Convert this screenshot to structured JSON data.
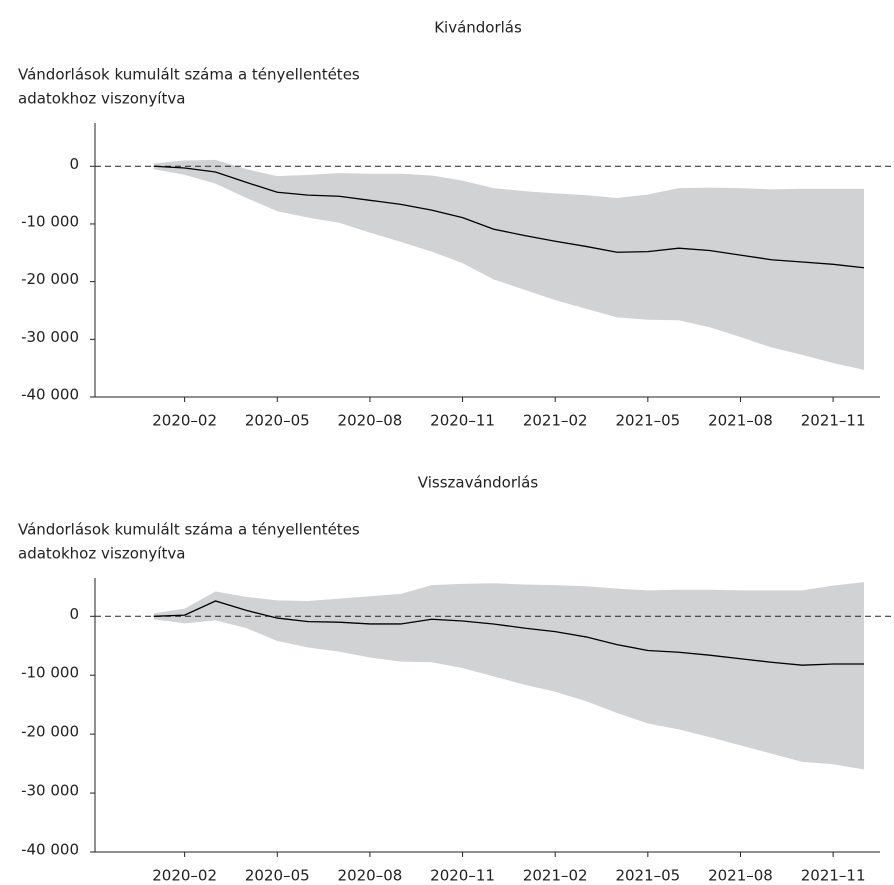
{
  "chart_data": [
    {
      "type": "line",
      "title": "Kivándorlás",
      "y_label": [
        "Vándorlások kumulált száma a tényellentétes",
        "adatokhoz viszonyítva"
      ],
      "x": [
        "2020-01",
        "2020-02",
        "2020-03",
        "2020-04",
        "2020-05",
        "2020-06",
        "2020-07",
        "2020-08",
        "2020-09",
        "2020-10",
        "2020-11",
        "2020-12",
        "2021-01",
        "2021-02",
        "2021-03",
        "2021-04",
        "2021-05",
        "2021-06",
        "2021-07",
        "2021-08",
        "2021-09",
        "2021-10",
        "2021-11",
        "2021-12"
      ],
      "series": [
        {
          "color": "#000000",
          "values": [
            0,
            -300,
            -1000,
            -2800,
            -4500,
            -5000,
            -5200,
            -5900,
            -6600,
            -7600,
            -8900,
            -10900,
            -12000,
            -13000,
            -13900,
            -14900,
            -14800,
            -14200,
            -14600,
            -15400,
            -16200,
            -16600,
            -17000,
            -17600
          ]
        }
      ],
      "band": {
        "color": "#d1d2d4",
        "upper": [
          500,
          1000,
          1100,
          -500,
          -1700,
          -1500,
          -1200,
          -1300,
          -1300,
          -1600,
          -2500,
          -3800,
          -4300,
          -4700,
          -5000,
          -5500,
          -4900,
          -3800,
          -3700,
          -3800,
          -4000,
          -3900,
          -3900,
          -3900
        ],
        "lower": [
          -500,
          -1500,
          -3000,
          -5500,
          -7800,
          -8900,
          -9800,
          -11500,
          -13100,
          -14800,
          -16800,
          -19600,
          -21400,
          -23200,
          -24700,
          -26200,
          -26600,
          -26700,
          -27900,
          -29600,
          -31400,
          -32700,
          -34100,
          -35300
        ]
      },
      "hline": 0,
      "xlim": [
        "2019-11",
        "2021-12"
      ],
      "xticks": [
        {
          "value": "2020-02",
          "label": "2020–02"
        },
        {
          "value": "2020-05",
          "label": "2020–05"
        },
        {
          "value": "2020-08",
          "label": "2020–08"
        },
        {
          "value": "2020-11",
          "label": "2020–11"
        },
        {
          "value": "2021-02",
          "label": "2021–02"
        },
        {
          "value": "2021-05",
          "label": "2021–05"
        },
        {
          "value": "2021-08",
          "label": "2021–08"
        },
        {
          "value": "2021-11",
          "label": "2021–11"
        }
      ],
      "ylim": [
        -40000,
        7500
      ],
      "yticks": [
        0,
        {
          "value": -10000,
          "label": "-10 000"
        },
        {
          "value": -20000,
          "label": "-20 000"
        },
        {
          "value": -30000,
          "label": "-30 000"
        },
        {
          "value": -40000,
          "label": "-40 000"
        }
      ]
    },
    {
      "type": "line",
      "title": "Visszavándorlás",
      "y_label": [
        "Vándorlások kumulált száma a tényellentétes",
        "adatokhoz viszonyítva"
      ],
      "x": [
        "2020-01",
        "2020-02",
        "2020-03",
        "2020-04",
        "2020-05",
        "2020-06",
        "2020-07",
        "2020-08",
        "2020-09",
        "2020-10",
        "2020-11",
        "2020-12",
        "2021-01",
        "2021-02",
        "2021-03",
        "2021-04",
        "2021-05",
        "2021-06",
        "2021-07",
        "2021-08",
        "2021-09",
        "2021-10",
        "2021-11",
        "2021-12"
      ],
      "series": [
        {
          "color": "#000000",
          "values": [
            0,
            200,
            2600,
            1000,
            -300,
            -900,
            -1000,
            -1300,
            -1300,
            -500,
            -800,
            -1300,
            -2000,
            -2600,
            -3500,
            -4800,
            -5800,
            -6100,
            -6600,
            -7200,
            -7800,
            -8300,
            -8100,
            -8100
          ]
        }
      ],
      "band": {
        "color": "#d1d2d4",
        "upper": [
          500,
          1300,
          4200,
          3300,
          2700,
          2600,
          3000,
          3400,
          3800,
          5300,
          5500,
          5600,
          5400,
          5300,
          5100,
          4700,
          4400,
          4500,
          4500,
          4400,
          4400,
          4400,
          5200,
          5800
        ],
        "lower": [
          -500,
          -1200,
          -700,
          -2000,
          -4200,
          -5300,
          -6000,
          -7000,
          -7700,
          -7800,
          -8800,
          -10200,
          -11600,
          -12800,
          -14400,
          -16400,
          -18200,
          -19200,
          -20500,
          -21900,
          -23300,
          -24700,
          -25100,
          -26000
        ]
      },
      "hline": 0,
      "xlim": [
        "2019-11",
        "2021-12"
      ],
      "xticks": [
        {
          "value": "2020-02",
          "label": "2020–02"
        },
        {
          "value": "2020-05",
          "label": "2020–05"
        },
        {
          "value": "2020-08",
          "label": "2020–08"
        },
        {
          "value": "2020-11",
          "label": "2020–11"
        },
        {
          "value": "2021-02",
          "label": "2021–02"
        },
        {
          "value": "2021-05",
          "label": "2021–05"
        },
        {
          "value": "2021-08",
          "label": "2021–08"
        },
        {
          "value": "2021-11",
          "label": "2021–11"
        }
      ],
      "ylim": [
        -40000,
        6500
      ],
      "yticks": [
        0,
        {
          "value": -10000,
          "label": "-10 000"
        },
        {
          "value": -20000,
          "label": "-20 000"
        },
        {
          "value": -30000,
          "label": "-30 000"
        },
        {
          "value": -40000,
          "label": "-40 000"
        }
      ]
    }
  ]
}
